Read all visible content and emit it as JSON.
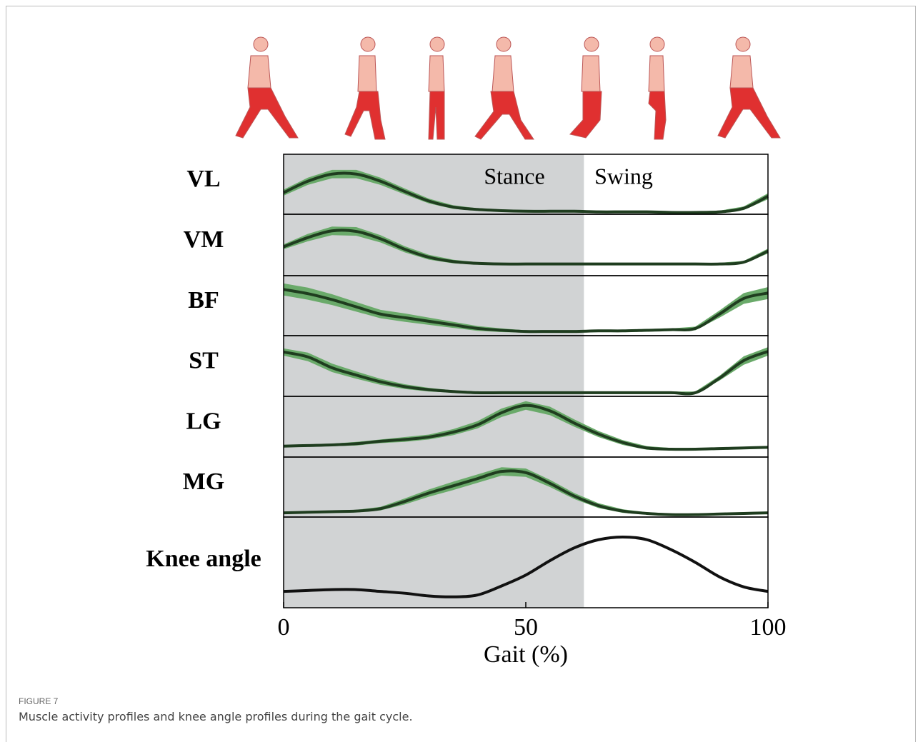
{
  "figure": {
    "label": "FIGURE 7",
    "caption": "Muscle activity profiles and knee angle profiles during the gait cycle.",
    "stance_end": 62,
    "annotations": [
      "Stance",
      "Swing"
    ]
  },
  "chart_data": [
    {
      "type": "line",
      "ylabel": "VL",
      "color": "#1f3d1f",
      "band_color": "#6aaa6a",
      "xlim": [
        0,
        100
      ],
      "ylim": [
        0,
        1
      ],
      "x": [
        0,
        5,
        10,
        15,
        20,
        25,
        30,
        35,
        40,
        45,
        50,
        55,
        60,
        65,
        70,
        75,
        80,
        85,
        90,
        95,
        100
      ],
      "values": [
        0.36,
        0.55,
        0.67,
        0.67,
        0.55,
        0.38,
        0.22,
        0.12,
        0.08,
        0.06,
        0.05,
        0.05,
        0.05,
        0.04,
        0.04,
        0.04,
        0.03,
        0.03,
        0.04,
        0.1,
        0.3
      ],
      "band": [
        0.05,
        0.06,
        0.07,
        0.07,
        0.06,
        0.05,
        0.04,
        0.03,
        0.02,
        0.02,
        0.02,
        0.02,
        0.02,
        0.02,
        0.02,
        0.02,
        0.02,
        0.02,
        0.02,
        0.03,
        0.05
      ]
    },
    {
      "type": "line",
      "ylabel": "VM",
      "color": "#1f3d1f",
      "band_color": "#6aaa6a",
      "xlim": [
        0,
        100
      ],
      "ylim": [
        0,
        1
      ],
      "x": [
        0,
        5,
        10,
        15,
        20,
        25,
        30,
        35,
        40,
        45,
        50,
        55,
        60,
        65,
        70,
        75,
        80,
        85,
        90,
        95,
        100
      ],
      "values": [
        0.47,
        0.62,
        0.73,
        0.72,
        0.6,
        0.43,
        0.3,
        0.23,
        0.2,
        0.19,
        0.19,
        0.19,
        0.19,
        0.19,
        0.19,
        0.19,
        0.19,
        0.19,
        0.19,
        0.22,
        0.4
      ],
      "band": [
        0.04,
        0.06,
        0.07,
        0.07,
        0.06,
        0.05,
        0.04,
        0.03,
        0.02,
        0.02,
        0.02,
        0.02,
        0.02,
        0.02,
        0.02,
        0.02,
        0.02,
        0.02,
        0.02,
        0.02,
        0.04
      ]
    },
    {
      "type": "line",
      "ylabel": "BF",
      "color": "#1f3d1f",
      "band_color": "#6aaa6a",
      "xlim": [
        0,
        100
      ],
      "ylim": [
        0,
        1
      ],
      "x": [
        0,
        5,
        10,
        15,
        20,
        25,
        30,
        35,
        40,
        45,
        50,
        55,
        60,
        65,
        70,
        75,
        80,
        85,
        90,
        95,
        100
      ],
      "values": [
        0.77,
        0.7,
        0.6,
        0.48,
        0.36,
        0.3,
        0.24,
        0.18,
        0.12,
        0.09,
        0.07,
        0.07,
        0.07,
        0.08,
        0.08,
        0.09,
        0.1,
        0.12,
        0.36,
        0.62,
        0.71
      ],
      "band": [
        0.1,
        0.1,
        0.09,
        0.08,
        0.07,
        0.07,
        0.06,
        0.05,
        0.04,
        0.03,
        0.02,
        0.02,
        0.02,
        0.02,
        0.02,
        0.02,
        0.02,
        0.03,
        0.06,
        0.09,
        0.1
      ]
    },
    {
      "type": "line",
      "ylabel": "ST",
      "color": "#1f3d1f",
      "band_color": "#6aaa6a",
      "xlim": [
        0,
        100
      ],
      "ylim": [
        0,
        1
      ],
      "x": [
        0,
        5,
        10,
        15,
        20,
        25,
        30,
        35,
        40,
        45,
        50,
        55,
        60,
        65,
        70,
        75,
        80,
        85,
        90,
        95,
        100
      ],
      "values": [
        0.73,
        0.65,
        0.47,
        0.35,
        0.24,
        0.16,
        0.11,
        0.08,
        0.06,
        0.06,
        0.06,
        0.06,
        0.06,
        0.06,
        0.06,
        0.06,
        0.06,
        0.06,
        0.3,
        0.59,
        0.74
      ],
      "band": [
        0.06,
        0.07,
        0.07,
        0.06,
        0.05,
        0.04,
        0.03,
        0.02,
        0.02,
        0.02,
        0.02,
        0.02,
        0.02,
        0.02,
        0.02,
        0.02,
        0.02,
        0.02,
        0.04,
        0.07,
        0.07
      ]
    },
    {
      "type": "line",
      "ylabel": "LG",
      "color": "#1f3d1f",
      "band_color": "#6aaa6a",
      "xlim": [
        0,
        100
      ],
      "ylim": [
        0,
        1
      ],
      "x": [
        0,
        5,
        10,
        15,
        20,
        25,
        30,
        35,
        40,
        45,
        50,
        55,
        60,
        65,
        70,
        75,
        80,
        85,
        90,
        95,
        100
      ],
      "values": [
        0.18,
        0.19,
        0.2,
        0.22,
        0.26,
        0.29,
        0.33,
        0.41,
        0.53,
        0.73,
        0.85,
        0.76,
        0.56,
        0.38,
        0.24,
        0.15,
        0.13,
        0.13,
        0.14,
        0.15,
        0.16
      ],
      "band": [
        0.02,
        0.02,
        0.02,
        0.03,
        0.03,
        0.04,
        0.04,
        0.05,
        0.06,
        0.07,
        0.07,
        0.07,
        0.06,
        0.05,
        0.04,
        0.03,
        0.02,
        0.02,
        0.02,
        0.02,
        0.02
      ]
    },
    {
      "type": "line",
      "ylabel": "MG",
      "color": "#1f3d1f",
      "band_color": "#6aaa6a",
      "xlim": [
        0,
        100
      ],
      "ylim": [
        0,
        1
      ],
      "x": [
        0,
        5,
        10,
        15,
        20,
        25,
        30,
        35,
        40,
        45,
        50,
        55,
        60,
        65,
        70,
        75,
        80,
        85,
        90,
        95,
        100
      ],
      "values": [
        0.07,
        0.08,
        0.09,
        0.1,
        0.14,
        0.26,
        0.4,
        0.52,
        0.64,
        0.76,
        0.74,
        0.56,
        0.35,
        0.19,
        0.1,
        0.06,
        0.04,
        0.04,
        0.05,
        0.06,
        0.07
      ],
      "band": [
        0.02,
        0.02,
        0.02,
        0.02,
        0.03,
        0.05,
        0.06,
        0.07,
        0.07,
        0.07,
        0.07,
        0.06,
        0.05,
        0.04,
        0.03,
        0.02,
        0.02,
        0.02,
        0.02,
        0.02,
        0.02
      ]
    },
    {
      "type": "line",
      "ylabel": "Knee angle",
      "color": "#111111",
      "xlim": [
        0,
        100
      ],
      "ylim": [
        0,
        1
      ],
      "xticks": [
        0,
        50,
        100
      ],
      "xlabel": "Gait (%)",
      "x": [
        0,
        5,
        10,
        15,
        20,
        25,
        30,
        35,
        40,
        45,
        50,
        55,
        60,
        65,
        70,
        75,
        80,
        85,
        90,
        95,
        100
      ],
      "values": [
        0.18,
        0.19,
        0.2,
        0.2,
        0.18,
        0.16,
        0.13,
        0.12,
        0.14,
        0.24,
        0.36,
        0.52,
        0.66,
        0.75,
        0.78,
        0.75,
        0.64,
        0.5,
        0.34,
        0.23,
        0.18
      ]
    }
  ]
}
